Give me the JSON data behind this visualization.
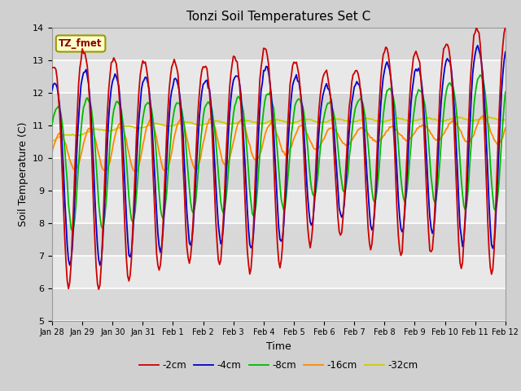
{
  "title": "Tonzi Soil Temperatures Set C",
  "xlabel": "Time",
  "ylabel": "Soil Temperature (C)",
  "ylim": [
    5.0,
    14.0
  ],
  "yticks": [
    5.0,
    6.0,
    7.0,
    8.0,
    9.0,
    10.0,
    11.0,
    12.0,
    13.0,
    14.0
  ],
  "fig_bg_color": "#d0d0d0",
  "plot_bg_color": "#e8e8e8",
  "grid_color": "#ffffff",
  "legend_label": "TZ_fmet",
  "series_labels": [
    "-2cm",
    "-4cm",
    "-8cm",
    "-16cm",
    "-32cm"
  ],
  "series_colors": [
    "#cc0000",
    "#0000cc",
    "#00bb00",
    "#ff8800",
    "#cccc00"
  ],
  "n_hours": 361,
  "xtick_labels": [
    "Jan 28",
    "Jan 29",
    "Jan 30",
    "Jan 31",
    "Feb 1",
    "Feb 2",
    "Feb 3",
    "Feb 4",
    "Feb 5",
    "Feb 6",
    "Feb 7",
    "Feb 8",
    "Feb 9",
    "Feb 10",
    "Feb 11",
    "Feb 12"
  ],
  "xtick_positions": [
    0,
    24,
    48,
    72,
    96,
    120,
    144,
    168,
    192,
    216,
    240,
    264,
    288,
    312,
    336,
    360
  ]
}
